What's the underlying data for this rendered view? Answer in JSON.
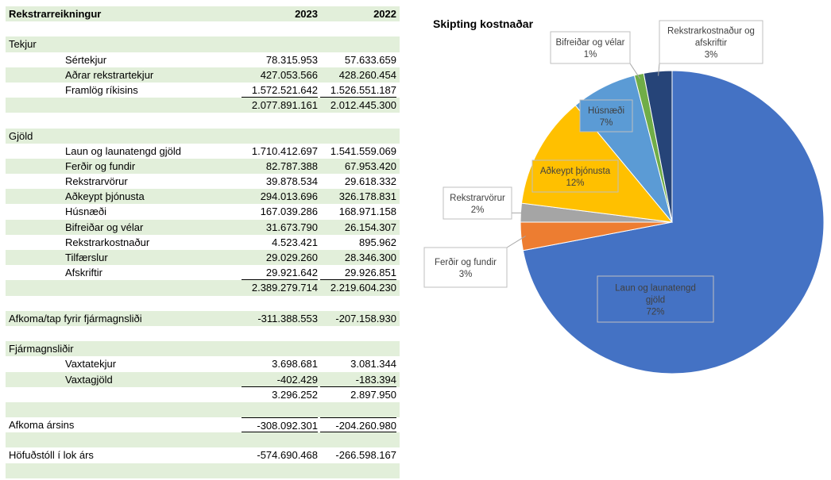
{
  "table": {
    "header": {
      "title": "Rekstrarreikningur",
      "col_a": "2023",
      "col_b": "2022"
    },
    "rows": [
      {
        "kind": "blank",
        "green": false
      },
      {
        "kind": "section",
        "label": "Tekjur",
        "green": true
      },
      {
        "kind": "item",
        "label": "Sértekjur",
        "a": "78.315.953",
        "b": "57.633.659",
        "green": false
      },
      {
        "kind": "item",
        "label": "Aðrar rekstrartekjur",
        "a": "427.053.566",
        "b": "428.260.454",
        "green": true
      },
      {
        "kind": "item",
        "label": "Framlög ríkisins",
        "a": "1.572.521.642",
        "b": "1.526.551.187",
        "green": false,
        "underline": true
      },
      {
        "kind": "total",
        "a": "2.077.891.161",
        "b": "2.012.445.300",
        "green": true
      },
      {
        "kind": "blank",
        "green": false
      },
      {
        "kind": "section",
        "label": "Gjöld",
        "green": true
      },
      {
        "kind": "item",
        "label": "Laun og launatengd gjöld",
        "a": "1.710.412.697",
        "b": "1.541.559.069",
        "green": false
      },
      {
        "kind": "item",
        "label": "Ferðir og fundir",
        "a": "82.787.388",
        "b": "67.953.420",
        "green": true
      },
      {
        "kind": "item",
        "label": "Rekstrarvörur",
        "a": "39.878.534",
        "b": "29.618.332",
        "green": false
      },
      {
        "kind": "item",
        "label": "Aðkeypt þjónusta",
        "a": "294.013.696",
        "b": "326.178.831",
        "green": true
      },
      {
        "kind": "item",
        "label": "Húsnæði",
        "a": "167.039.286",
        "b": "168.971.158",
        "green": false
      },
      {
        "kind": "item",
        "label": "Bifreiðar og vélar",
        "a": "31.673.790",
        "b": "26.154.307",
        "green": true
      },
      {
        "kind": "item",
        "label": "Rekstrarkostnaður",
        "a": "4.523.421",
        "b": "895.962",
        "green": false
      },
      {
        "kind": "item",
        "label": "Tilfærslur",
        "a": "29.029.260",
        "b": "28.346.300",
        "green": true
      },
      {
        "kind": "item",
        "label": "Afskriftir",
        "a": "29.921.642",
        "b": "29.926.851",
        "green": false,
        "underline": true
      },
      {
        "kind": "total",
        "a": "2.389.279.714",
        "b": "2.219.604.230",
        "green": true
      },
      {
        "kind": "blank",
        "green": false
      },
      {
        "kind": "section",
        "label": "Afkoma/tap fyrir fjármagnsliði",
        "a": "-311.388.553",
        "b": "-207.158.930",
        "green": true
      },
      {
        "kind": "blank",
        "green": false
      },
      {
        "kind": "section",
        "label": "Fjármagnsliðir",
        "green": true
      },
      {
        "kind": "item",
        "label": "Vaxtatekjur",
        "a": "3.698.681",
        "b": "3.081.344",
        "green": false
      },
      {
        "kind": "item",
        "label": "Vaxtagjöld",
        "a": "-402.429",
        "b": "-183.394",
        "green": true,
        "underline": true
      },
      {
        "kind": "total",
        "a": "3.296.252",
        "b": "2.897.950",
        "green": false
      },
      {
        "kind": "blank",
        "green": true
      },
      {
        "kind": "section",
        "label": "Afkoma ársins",
        "a": "-308.092.301",
        "b": "-204.260.980",
        "green": false,
        "double": true
      },
      {
        "kind": "blank",
        "green": true
      },
      {
        "kind": "section",
        "label": "Höfuðstóll í lok árs",
        "a": "-574.690.468",
        "b": "-266.598.167",
        "green": false
      },
      {
        "kind": "blank",
        "green": true
      }
    ]
  },
  "chart_data": {
    "type": "pie",
    "title": "Skipting kostnaðar",
    "slices": [
      {
        "label": "Laun og launatengd gjöld",
        "value": 72,
        "pct": "72%",
        "color": "#4472c4"
      },
      {
        "label": "Ferðir og fundir",
        "value": 3,
        "pct": "3%",
        "color": "#ed7d31"
      },
      {
        "label": "Rekstrarvörur",
        "value": 2,
        "pct": "2%",
        "color": "#a5a5a5"
      },
      {
        "label": "Aðkeypt þjónusta",
        "value": 12,
        "pct": "12%",
        "color": "#ffc000"
      },
      {
        "label": "Húsnæði",
        "value": 7,
        "pct": "7%",
        "color": "#5b9bd5"
      },
      {
        "label": "Bifreiðar og vélar",
        "value": 1,
        "pct": "1%",
        "color": "#70ad47"
      },
      {
        "label": "Rekstrarkostnaður og afskriftir",
        "value": 3,
        "pct": "3%",
        "color": "#264478"
      }
    ]
  }
}
